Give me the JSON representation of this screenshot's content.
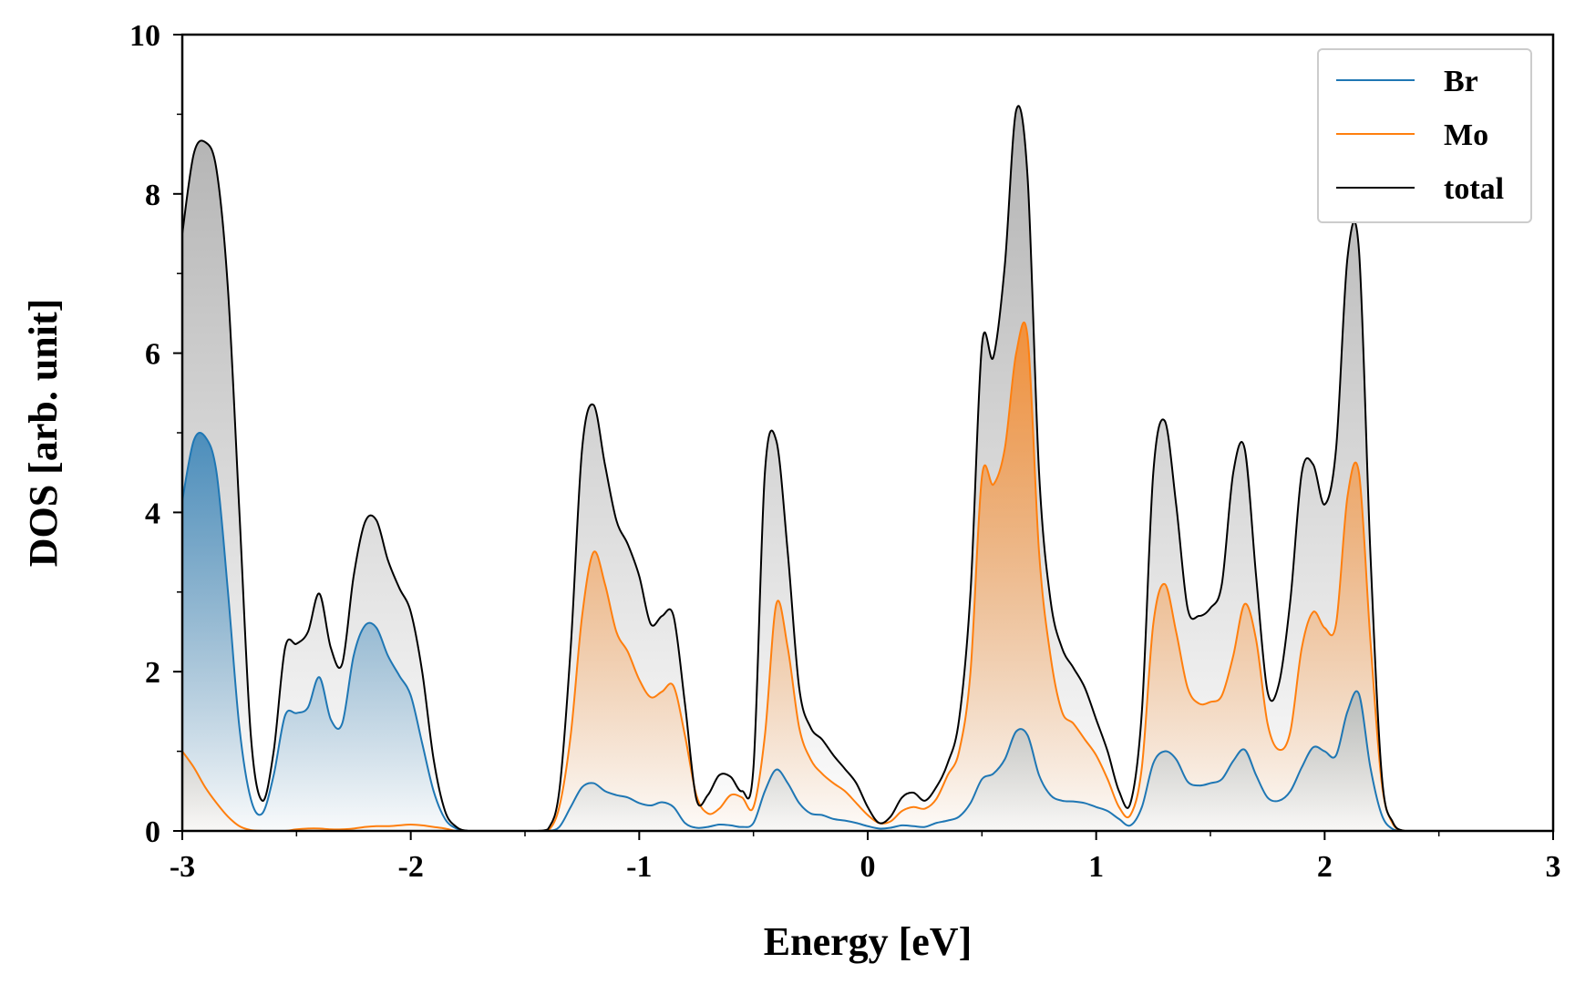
{
  "chart_data": {
    "type": "line",
    "title": "",
    "xlabel": "Energy [eV]",
    "ylabel": "DOS [arb. unit]",
    "xlim": [
      -3,
      3
    ],
    "ylim": [
      0,
      10
    ],
    "x_major_ticks": [
      -3,
      -2,
      -1,
      0,
      1,
      2,
      3
    ],
    "x_tick_labels": [
      "-3",
      "-2",
      "-1",
      "0",
      "1",
      "2",
      "3"
    ],
    "y_major_ticks": [
      0,
      2,
      4,
      6,
      8,
      10
    ],
    "y_tick_labels": [
      "0",
      "2",
      "4",
      "6",
      "8",
      "10"
    ],
    "grid": false,
    "legend_position": "top-right",
    "fill_under_curves": true,
    "x": [
      -3.0,
      -2.95,
      -2.9,
      -2.85,
      -2.8,
      -2.75,
      -2.7,
      -2.65,
      -2.6,
      -2.55,
      -2.5,
      -2.45,
      -2.4,
      -2.35,
      -2.3,
      -2.25,
      -2.2,
      -2.15,
      -2.1,
      -2.05,
      -2.0,
      -1.95,
      -1.9,
      -1.85,
      -1.8,
      -1.75,
      -1.7,
      -1.65,
      -1.6,
      -1.55,
      -1.5,
      -1.45,
      -1.4,
      -1.35,
      -1.3,
      -1.25,
      -1.2,
      -1.15,
      -1.1,
      -1.05,
      -1.0,
      -0.95,
      -0.9,
      -0.85,
      -0.8,
      -0.75,
      -0.7,
      -0.65,
      -0.6,
      -0.55,
      -0.5,
      -0.45,
      -0.4,
      -0.35,
      -0.3,
      -0.25,
      -0.2,
      -0.15,
      -0.1,
      -0.05,
      0.0,
      0.05,
      0.1,
      0.15,
      0.2,
      0.25,
      0.3,
      0.35,
      0.4,
      0.45,
      0.5,
      0.55,
      0.6,
      0.65,
      0.7,
      0.75,
      0.8,
      0.85,
      0.9,
      0.95,
      1.0,
      1.05,
      1.1,
      1.15,
      1.2,
      1.25,
      1.3,
      1.35,
      1.4,
      1.45,
      1.5,
      1.55,
      1.6,
      1.65,
      1.7,
      1.75,
      1.8,
      1.85,
      1.9,
      1.95,
      2.0,
      2.05,
      2.1,
      2.15,
      2.2,
      2.25,
      2.3,
      2.35,
      2.4,
      2.45,
      2.5,
      2.55,
      2.6,
      2.65,
      2.7,
      2.75,
      2.8,
      2.85,
      2.9,
      2.95,
      3.0
    ],
    "series": [
      {
        "name": "Br",
        "color": "#1f77b4",
        "values": [
          4.15,
          4.9,
          4.95,
          4.5,
          3.0,
          1.3,
          0.4,
          0.22,
          0.7,
          1.45,
          1.48,
          1.55,
          1.93,
          1.4,
          1.35,
          2.2,
          2.58,
          2.55,
          2.2,
          1.95,
          1.7,
          1.1,
          0.5,
          0.15,
          0.03,
          0.0,
          0.0,
          0.0,
          0.0,
          0.0,
          0.0,
          0.0,
          0.0,
          0.05,
          0.3,
          0.55,
          0.6,
          0.5,
          0.45,
          0.42,
          0.35,
          0.32,
          0.36,
          0.3,
          0.1,
          0.04,
          0.05,
          0.08,
          0.07,
          0.05,
          0.1,
          0.5,
          0.77,
          0.6,
          0.35,
          0.22,
          0.2,
          0.15,
          0.13,
          0.1,
          0.06,
          0.03,
          0.04,
          0.07,
          0.06,
          0.05,
          0.1,
          0.13,
          0.18,
          0.35,
          0.65,
          0.72,
          0.9,
          1.25,
          1.2,
          0.7,
          0.45,
          0.38,
          0.37,
          0.35,
          0.3,
          0.25,
          0.15,
          0.07,
          0.3,
          0.85,
          1.0,
          0.9,
          0.62,
          0.57,
          0.6,
          0.65,
          0.88,
          1.02,
          0.7,
          0.42,
          0.38,
          0.5,
          0.8,
          1.05,
          1.0,
          0.95,
          1.5,
          1.72,
          0.8,
          0.2,
          0.02,
          0.0,
          0.0,
          0.0,
          0.0,
          0.0,
          0.0,
          0.0,
          0.0,
          0.0,
          0.0,
          0.0,
          0.0,
          0.0,
          0.0
        ]
      },
      {
        "name": "Mo",
        "color": "#ff7f0e",
        "values": [
          1.0,
          0.8,
          0.55,
          0.35,
          0.18,
          0.06,
          0.01,
          0.0,
          0.0,
          0.0,
          0.02,
          0.03,
          0.03,
          0.02,
          0.02,
          0.03,
          0.05,
          0.06,
          0.06,
          0.07,
          0.08,
          0.07,
          0.05,
          0.03,
          0.0,
          0.0,
          0.0,
          0.0,
          0.0,
          0.0,
          0.0,
          0.0,
          0.0,
          0.3,
          1.2,
          2.7,
          3.5,
          3.1,
          2.5,
          2.25,
          1.9,
          1.68,
          1.75,
          1.82,
          1.2,
          0.45,
          0.22,
          0.28,
          0.45,
          0.42,
          0.3,
          1.2,
          2.85,
          2.3,
          1.3,
          0.9,
          0.72,
          0.6,
          0.5,
          0.35,
          0.2,
          0.1,
          0.12,
          0.25,
          0.3,
          0.28,
          0.4,
          0.7,
          1.0,
          2.0,
          4.45,
          4.35,
          4.8,
          6.0,
          6.2,
          3.5,
          2.2,
          1.5,
          1.35,
          1.15,
          0.95,
          0.65,
          0.3,
          0.2,
          0.8,
          2.6,
          3.1,
          2.5,
          1.8,
          1.6,
          1.62,
          1.7,
          2.2,
          2.85,
          2.4,
          1.35,
          1.02,
          1.25,
          2.3,
          2.75,
          2.55,
          2.6,
          4.2,
          4.5,
          2.4,
          0.6,
          0.08,
          0.0,
          0.0,
          0.0,
          0.0,
          0.0,
          0.0,
          0.0,
          0.0,
          0.0,
          0.0,
          0.0,
          0.0,
          0.0,
          0.0
        ]
      },
      {
        "name": "total",
        "color": "#000000",
        "values": [
          7.5,
          8.5,
          8.65,
          8.3,
          6.8,
          4.0,
          1.2,
          0.38,
          1.0,
          2.3,
          2.35,
          2.5,
          2.98,
          2.3,
          2.1,
          3.2,
          3.88,
          3.9,
          3.4,
          3.05,
          2.75,
          2.0,
          0.9,
          0.25,
          0.05,
          0.0,
          0.0,
          0.0,
          0.0,
          0.0,
          0.0,
          0.0,
          0.02,
          0.5,
          2.3,
          4.8,
          5.35,
          4.6,
          3.9,
          3.6,
          3.2,
          2.6,
          2.7,
          2.7,
          1.6,
          0.4,
          0.45,
          0.7,
          0.68,
          0.5,
          0.8,
          4.5,
          4.9,
          3.5,
          1.8,
          1.3,
          1.15,
          0.95,
          0.78,
          0.6,
          0.3,
          0.1,
          0.18,
          0.42,
          0.48,
          0.38,
          0.55,
          0.85,
          1.4,
          3.0,
          6.1,
          5.95,
          7.1,
          9.05,
          8.2,
          4.5,
          2.9,
          2.3,
          2.05,
          1.8,
          1.4,
          1.0,
          0.5,
          0.35,
          1.5,
          4.5,
          5.15,
          4.1,
          2.8,
          2.7,
          2.8,
          3.1,
          4.5,
          4.8,
          3.2,
          1.75,
          1.85,
          2.9,
          4.5,
          4.6,
          4.1,
          4.8,
          7.2,
          7.3,
          3.5,
          0.7,
          0.1,
          0.0,
          0.0,
          0.0,
          0.0,
          0.0,
          0.0,
          0.0,
          0.0,
          0.0,
          0.0,
          0.0,
          0.0,
          0.0,
          0.0
        ]
      }
    ]
  }
}
